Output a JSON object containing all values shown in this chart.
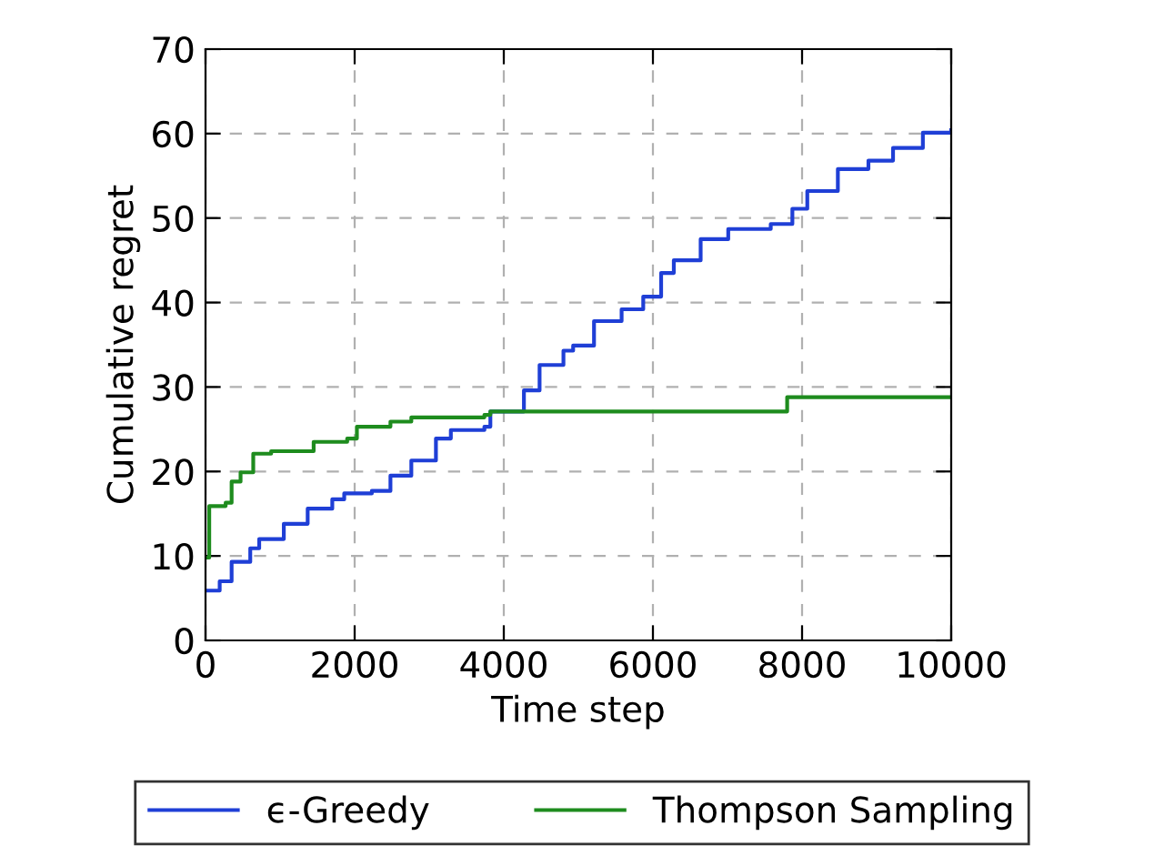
{
  "chart_data": {
    "type": "step",
    "xlabel": "Time step",
    "ylabel": "Cumulative regret",
    "xlim": [
      0,
      10000
    ],
    "xticks": [
      0,
      2000,
      4000,
      6000,
      8000,
      10000
    ],
    "ylim": [
      0,
      70
    ],
    "yticks": [
      0,
      10,
      20,
      30,
      40,
      50,
      60,
      70
    ],
    "grid": true,
    "legend": "bottom",
    "line_style": "solid",
    "series": [
      {
        "name": "ϵ-Greedy",
        "color": "#1f3fd6",
        "x": [
          0,
          190,
          350,
          600,
          720,
          1050,
          1370,
          1700,
          1860,
          2230,
          2480,
          2760,
          3090,
          3290,
          3740,
          3820,
          4110,
          4270,
          4480,
          4800,
          4930,
          5210,
          5580,
          5870,
          6110,
          6280,
          6640,
          7010,
          7580,
          7870,
          8070,
          8480,
          8890,
          9220,
          9620,
          10000
        ],
        "values": [
          5.9,
          7.0,
          9.3,
          10.9,
          12.0,
          13.8,
          15.6,
          16.7,
          17.4,
          17.7,
          19.5,
          21.3,
          23.9,
          24.9,
          25.3,
          27.1,
          27.1,
          29.6,
          32.6,
          34.3,
          34.9,
          37.8,
          39.2,
          40.7,
          43.5,
          45.0,
          47.5,
          48.7,
          49.3,
          51.1,
          53.2,
          55.8,
          56.8,
          58.3,
          60.1,
          60.4
        ]
      },
      {
        "name": "Thompson Sampling",
        "color": "#1e8c1e",
        "x": [
          0,
          50,
          270,
          350,
          470,
          640,
          880,
          1450,
          1900,
          2030,
          2480,
          2760,
          3740,
          3820,
          7580,
          7800,
          10000
        ],
        "values": [
          9.8,
          15.9,
          16.3,
          18.8,
          19.9,
          22.1,
          22.4,
          23.5,
          23.9,
          25.3,
          25.9,
          26.4,
          26.7,
          27.1,
          27.1,
          28.8,
          28.8
        ]
      }
    ]
  }
}
